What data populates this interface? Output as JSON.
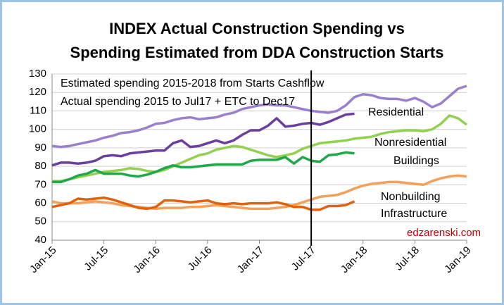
{
  "chart_data": {
    "type": "line",
    "title": [
      "INDEX Actual Construction Spending vs",
      "Spending Estimated from DDA Construction Starts"
    ],
    "categories": [
      "Jan-15",
      null,
      null,
      null,
      null,
      null,
      "Jul-15",
      null,
      null,
      null,
      null,
      null,
      "Jan-16",
      null,
      null,
      null,
      null,
      null,
      "Jul-16",
      null,
      null,
      null,
      null,
      null,
      "Jan-17",
      null,
      null,
      null,
      null,
      null,
      "Jul-17",
      null,
      null,
      null,
      null,
      null,
      "Jan-18",
      null,
      null,
      null,
      null,
      null,
      "Jul-18",
      null,
      null,
      null,
      null,
      null,
      "Jan-19"
    ],
    "series": [
      {
        "color": "#9b7fcf",
        "values": [
          91,
          90.5,
          91,
          92,
          93,
          94,
          95.5,
          96.5,
          98,
          98.5,
          99.5,
          101,
          103,
          103.5,
          105,
          106,
          106.5,
          105.5,
          106,
          106.5,
          108,
          109,
          111,
          112,
          113,
          113.5,
          113,
          113,
          112,
          111,
          110,
          109.5,
          109,
          110,
          113,
          117.5,
          119,
          118.5,
          117,
          116.5,
          116.5,
          115.5,
          117,
          115,
          112,
          114,
          118,
          122,
          123.5
        ]
      },
      {
        "color": "#6b3fa0",
        "values": [
          80.5,
          82,
          82,
          81.5,
          82,
          83,
          85.5,
          86,
          85.5,
          87,
          87.5,
          88,
          88.5,
          88.5,
          92.5,
          94,
          90.5,
          91,
          92.5,
          94,
          92.5,
          94,
          97,
          99.5,
          99.5,
          102,
          106,
          101.5,
          102,
          103,
          103.5,
          102.5,
          104,
          106,
          108,
          108.5,
          null,
          null,
          null,
          null,
          null,
          null,
          null,
          null,
          null,
          null,
          null,
          null,
          null
        ]
      },
      {
        "color": "#92d050",
        "values": [
          72,
          72,
          73,
          74,
          75,
          76,
          77,
          77.5,
          78,
          79,
          78.5,
          77.5,
          77,
          78,
          80,
          82,
          84,
          86,
          87,
          89,
          90,
          91,
          90.5,
          89,
          87.5,
          86,
          85,
          86,
          87,
          89.5,
          91,
          92.5,
          93,
          93.5,
          94,
          95,
          95.5,
          96,
          97.5,
          98.5,
          99,
          99.5,
          99.5,
          99,
          100,
          103,
          107.5,
          106,
          102.5
        ]
      },
      {
        "color": "#1fa84a",
        "values": [
          71.5,
          71.5,
          73,
          75,
          76,
          78,
          76,
          76,
          76,
          75,
          74.5,
          75.5,
          77,
          79,
          80.5,
          79.5,
          79.5,
          80,
          80.5,
          81,
          81,
          81,
          81,
          83,
          83.5,
          83.5,
          83.5,
          85,
          81.5,
          85,
          83,
          82.5,
          86,
          86.5,
          87.5,
          87,
          null,
          null,
          null,
          null,
          null,
          null,
          null,
          null,
          null,
          null,
          null,
          null,
          null
        ]
      },
      {
        "color": "#f5a05a",
        "values": [
          61,
          60,
          60,
          60,
          60.5,
          61,
          60.5,
          60,
          59,
          58.5,
          58,
          57.5,
          57,
          57.5,
          57.5,
          57.5,
          58,
          58,
          58.5,
          59,
          58.5,
          58,
          57.5,
          57,
          57,
          57,
          57.5,
          58,
          59,
          60.5,
          62,
          63.5,
          64,
          64.5,
          66,
          68,
          69.5,
          70.5,
          71,
          71.5,
          71.5,
          71,
          70.5,
          70,
          72,
          73.5,
          74.5,
          75,
          74.5
        ]
      },
      {
        "color": "#e0620d",
        "values": [
          58,
          59,
          60,
          62.5,
          62,
          62.5,
          63,
          62,
          60.5,
          59,
          57.5,
          57,
          58,
          61.5,
          61.5,
          61,
          60.5,
          61,
          61.5,
          60,
          59.5,
          60,
          59.5,
          60,
          60,
          60,
          60.5,
          59.5,
          58,
          58,
          56.5,
          56.5,
          58.5,
          58.5,
          59,
          61,
          null,
          null,
          null,
          null,
          null,
          null,
          null,
          null,
          null,
          null,
          null,
          null,
          null
        ]
      }
    ],
    "annotations": [
      "Estimated spending 2015-2018 from Starts Cashflow",
      "Actual spending 2015 to Jul17 + ETC to Dec17",
      "Residential",
      "Nonresidential",
      "Buildings",
      "Nonbuilding",
      "Infrastructure"
    ],
    "source": "edzarenski.com",
    "vertical_line": "Jul-17",
    "ylim": [
      40,
      130
    ],
    "yticks": [
      40,
      50,
      60,
      70,
      80,
      90,
      100,
      110,
      120,
      130
    ],
    "grid": true
  }
}
